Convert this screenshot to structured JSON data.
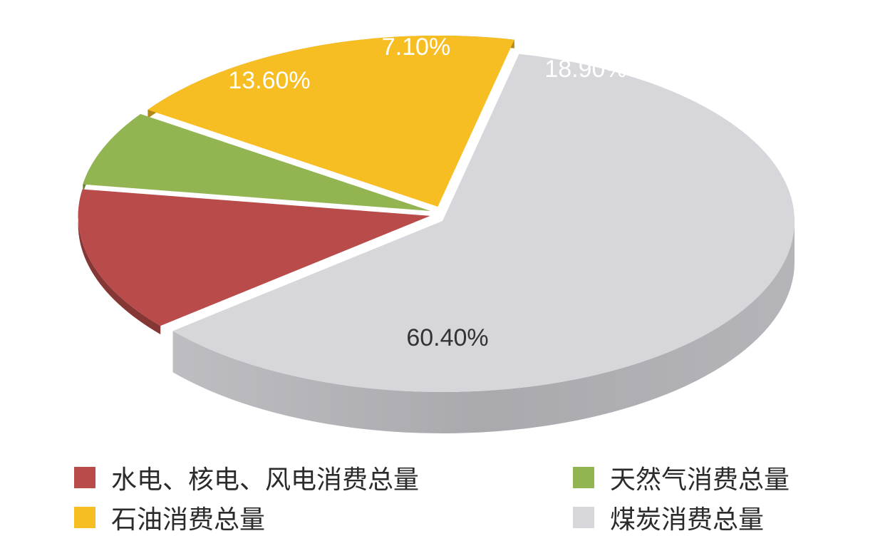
{
  "chart_data": {
    "type": "pie",
    "style": "3d-exploded",
    "slices": [
      {
        "label": "水电、核电、风电消费总量",
        "value": 13.6,
        "display": "13.60%",
        "color": "#b94c4a",
        "exploded": true
      },
      {
        "label": "天然气消费总量",
        "value": 7.1,
        "display": "7.10%",
        "color": "#93b551",
        "exploded": true
      },
      {
        "label": "石油消费总量",
        "value": 18.9,
        "display": "18.90%",
        "color": "#f6be22",
        "exploded": true
      },
      {
        "label": "煤炭消费总量",
        "value": 60.4,
        "display": "60.40%",
        "color": "#d6d6db",
        "exploded": false
      }
    ],
    "legend_placement": "bottom"
  }
}
